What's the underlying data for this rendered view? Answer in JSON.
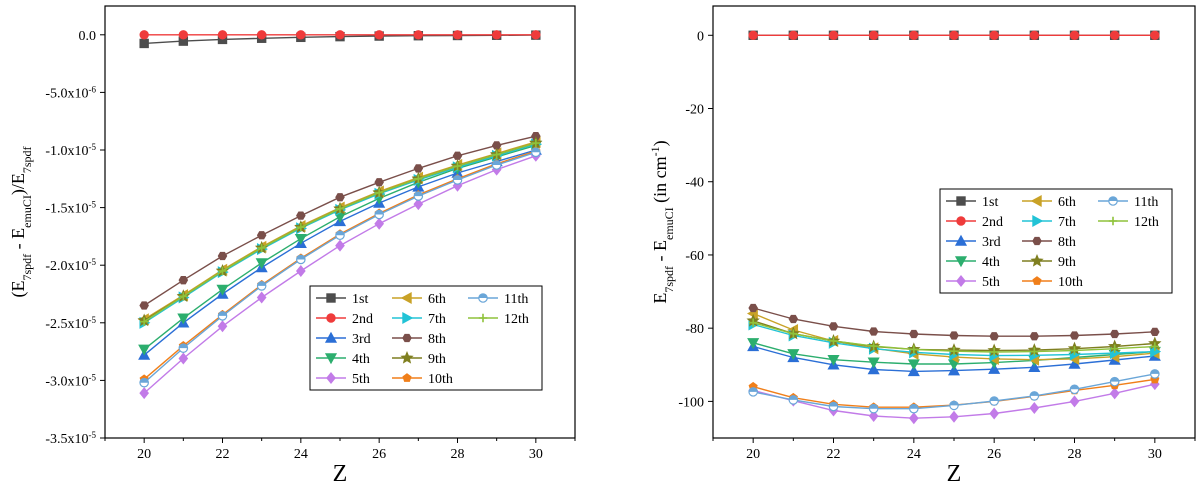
{
  "chart_data": [
    {
      "type": "line",
      "xlabel": "Z",
      "ylabel": "(E7spdf - EemuCI)/E7spdf",
      "ylabel_parts": {
        "open": "(E",
        "sub1": "7spdf",
        "mid": " - E",
        "sub2": "emuCI",
        "close": ")/E",
        "sub3": "7spdf"
      },
      "xlim": [
        19,
        31
      ],
      "ylim": [
        -3.5e-05,
        2.5e-06
      ],
      "xticks": [
        20,
        22,
        24,
        26,
        28,
        30
      ],
      "yticks": [
        {
          "value": 0,
          "mant": "0.0",
          "exp": ""
        },
        {
          "value": -5e-06,
          "mant": "-5.0x10",
          "exp": "-6"
        },
        {
          "value": -1e-05,
          "mant": "-1.0x10",
          "exp": "-5"
        },
        {
          "value": -1.5e-05,
          "mant": "-1.5x10",
          "exp": "-5"
        },
        {
          "value": -2e-05,
          "mant": "-2.0x10",
          "exp": "-5"
        },
        {
          "value": -2.5e-05,
          "mant": "-2.5x10",
          "exp": "-5"
        },
        {
          "value": -3e-05,
          "mant": "-3.0x10",
          "exp": "-5"
        },
        {
          "value": -3.5e-05,
          "mant": "-3.5x10",
          "exp": "-5"
        }
      ],
      "legend_position": "bottom-right",
      "x": [
        20,
        21,
        22,
        23,
        24,
        25,
        26,
        27,
        28,
        29,
        30
      ],
      "series": [
        {
          "name": "1st",
          "color": "#4d4d4d",
          "marker": "square",
          "values": [
            -7.5e-07,
            -5.5e-07,
            -4e-07,
            -3e-07,
            -2.2e-07,
            -1.6e-07,
            -1.1e-07,
            -8e-08,
            -6e-08,
            -4e-08,
            -3e-08
          ]
        },
        {
          "name": "2nd",
          "color": "#ef3b3b",
          "marker": "circle",
          "values": [
            0,
            0,
            0,
            0,
            0,
            0,
            0,
            0,
            0,
            0,
            0
          ]
        },
        {
          "name": "3rd",
          "color": "#2b6fd6",
          "marker": "triangle-up",
          "values": [
            -2.78e-05,
            -2.5e-05,
            -2.25e-05,
            -2.02e-05,
            -1.81e-05,
            -1.62e-05,
            -1.46e-05,
            -1.32e-05,
            -1.2e-05,
            -1.1e-05,
            -1e-05
          ]
        },
        {
          "name": "4th",
          "color": "#2cae6e",
          "marker": "triangle-down",
          "values": [
            -2.73e-05,
            -2.46e-05,
            -2.21e-05,
            -1.98e-05,
            -1.77e-05,
            -1.58e-05,
            -1.42e-05,
            -1.28e-05,
            -1.16e-05,
            -1.06e-05,
            -9.6e-06
          ]
        },
        {
          "name": "5th",
          "color": "#c27be8",
          "marker": "diamond",
          "values": [
            -3.11e-05,
            -2.81e-05,
            -2.53e-05,
            -2.28e-05,
            -2.05e-05,
            -1.83e-05,
            -1.64e-05,
            -1.47e-05,
            -1.31e-05,
            -1.17e-05,
            -1.05e-05
          ]
        },
        {
          "name": "6th",
          "color": "#c9a227",
          "marker": "triangle-left",
          "values": [
            -2.47e-05,
            -2.26e-05,
            -2.04e-05,
            -1.84e-05,
            -1.66e-05,
            -1.5e-05,
            -1.36e-05,
            -1.24e-05,
            -1.13e-05,
            -1.03e-05,
            -9.3e-06
          ]
        },
        {
          "name": "7th",
          "color": "#22c3d6",
          "marker": "triangle-right",
          "values": [
            -2.5e-05,
            -2.28e-05,
            -2.06e-05,
            -1.86e-05,
            -1.68e-05,
            -1.52e-05,
            -1.38e-05,
            -1.26e-05,
            -1.15e-05,
            -1.05e-05,
            -9.5e-06
          ]
        },
        {
          "name": "8th",
          "color": "#7a4f4a",
          "marker": "hexagon",
          "values": [
            -2.35e-05,
            -2.13e-05,
            -1.92e-05,
            -1.74e-05,
            -1.57e-05,
            -1.41e-05,
            -1.28e-05,
            -1.16e-05,
            -1.05e-05,
            -9.6e-06,
            -8.8e-06
          ]
        },
        {
          "name": "9th",
          "color": "#7f7f20",
          "marker": "star",
          "values": [
            -2.48e-05,
            -2.27e-05,
            -2.05e-05,
            -1.85e-05,
            -1.67e-05,
            -1.51e-05,
            -1.37e-05,
            -1.25e-05,
            -1.14e-05,
            -1.04e-05,
            -9.4e-06
          ]
        },
        {
          "name": "10th",
          "color": "#f07f1a",
          "marker": "pentagon",
          "values": [
            -2.99e-05,
            -2.7e-05,
            -2.43e-05,
            -2.17e-05,
            -1.94e-05,
            -1.73e-05,
            -1.55e-05,
            -1.39e-05,
            -1.25e-05,
            -1.12e-05,
            -1.01e-05
          ]
        },
        {
          "name": "11th",
          "color": "#6aa6d8",
          "marker": "circle-half",
          "values": [
            -3.02e-05,
            -2.72e-05,
            -2.44e-05,
            -2.18e-05,
            -1.95e-05,
            -1.74e-05,
            -1.56e-05,
            -1.4e-05,
            -1.26e-05,
            -1.13e-05,
            -1.02e-05
          ]
        },
        {
          "name": "12th",
          "color": "#8fc23b",
          "marker": "plus",
          "values": [
            -2.49e-05,
            -2.27e-05,
            -2.05e-05,
            -1.85e-05,
            -1.67e-05,
            -1.51e-05,
            -1.37e-05,
            -1.25e-05,
            -1.14e-05,
            -1.04e-05,
            -9.4e-06
          ]
        }
      ]
    },
    {
      "type": "line",
      "xlabel": "Z",
      "ylabel": "E7spdf - EemuCI (in cm-1)",
      "ylabel_parts": {
        "open": "E",
        "sub1": "7spdf",
        "mid": " - E",
        "sub2": "emuCI",
        "unit": "  (in cm",
        "sup": "-1",
        "close": ")"
      },
      "xlim": [
        19,
        31
      ],
      "ylim": [
        -110,
        8
      ],
      "xticks": [
        20,
        22,
        24,
        26,
        28,
        30
      ],
      "yticks": [
        0,
        -20,
        -40,
        -60,
        -80,
        -100
      ],
      "legend_position": "center-right",
      "x": [
        20,
        21,
        22,
        23,
        24,
        25,
        26,
        27,
        28,
        29,
        30
      ],
      "series": [
        {
          "name": "1st",
          "color": "#4d4d4d",
          "marker": "square",
          "values": [
            0,
            0,
            0,
            0,
            0,
            0,
            0,
            0,
            0,
            0,
            0
          ]
        },
        {
          "name": "2nd",
          "color": "#ef3b3b",
          "marker": "circle",
          "values": [
            0,
            0,
            0,
            0,
            0,
            0,
            0,
            0,
            0,
            0,
            0
          ]
        },
        {
          "name": "3rd",
          "color": "#2b6fd6",
          "marker": "triangle-up",
          "values": [
            -85,
            -88,
            -90,
            -91.3,
            -91.8,
            -91.6,
            -91.2,
            -90.7,
            -89.8,
            -88.7,
            -87.6
          ]
        },
        {
          "name": "4th",
          "color": "#2cae6e",
          "marker": "triangle-down",
          "values": [
            -84,
            -87,
            -88.6,
            -89.3,
            -89.8,
            -89.8,
            -89.4,
            -88.8,
            -88,
            -87.2,
            -86.4
          ]
        },
        {
          "name": "5th",
          "color": "#c27be8",
          "marker": "diamond",
          "values": [
            -97,
            -99.8,
            -102.5,
            -104,
            -104.6,
            -104.2,
            -103.3,
            -101.8,
            -100,
            -97.8,
            -95.3
          ]
        },
        {
          "name": "6th",
          "color": "#c9a227",
          "marker": "triangle-left",
          "values": [
            -76,
            -80.5,
            -83.5,
            -85.5,
            -87,
            -87.9,
            -88.4,
            -88.6,
            -88.4,
            -87.8,
            -86.8
          ]
        },
        {
          "name": "7th",
          "color": "#22c3d6",
          "marker": "triangle-right",
          "values": [
            -79,
            -82,
            -84,
            -85.6,
            -86.6,
            -87.2,
            -87.5,
            -87.4,
            -87.2,
            -86.8,
            -86.4
          ]
        },
        {
          "name": "8th",
          "color": "#7a4f4a",
          "marker": "hexagon",
          "values": [
            -74.5,
            -77.5,
            -79.5,
            -80.9,
            -81.6,
            -82,
            -82.2,
            -82.2,
            -82,
            -81.6,
            -81
          ]
        },
        {
          "name": "9th",
          "color": "#7f7f20",
          "marker": "star",
          "values": [
            -78,
            -81.5,
            -83.5,
            -85,
            -85.8,
            -86,
            -86.1,
            -86,
            -85.6,
            -85,
            -84.2
          ]
        },
        {
          "name": "10th",
          "color": "#f07f1a",
          "marker": "pentagon",
          "values": [
            -96,
            -99,
            -100.8,
            -101.6,
            -101.6,
            -101,
            -100,
            -98.6,
            -97,
            -95.6,
            -94
          ]
        },
        {
          "name": "11th",
          "color": "#6aa6d8",
          "marker": "circle-half",
          "values": [
            -97.4,
            -99.6,
            -101.4,
            -102,
            -102,
            -101.1,
            -99.9,
            -98.5,
            -96.7,
            -94.6,
            -92.5
          ]
        },
        {
          "name": "12th",
          "color": "#8fc23b",
          "marker": "plus",
          "values": [
            -78.5,
            -81.5,
            -83.5,
            -84.9,
            -85.8,
            -86.3,
            -86.5,
            -86.4,
            -86.1,
            -85.6,
            -85
          ]
        }
      ]
    }
  ]
}
